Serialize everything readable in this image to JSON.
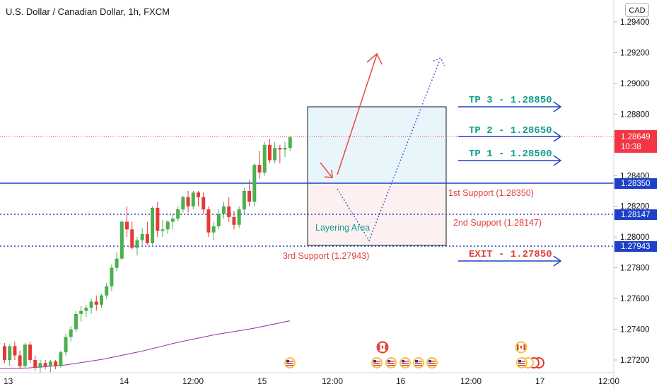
{
  "header": {
    "title": "U.S. Dollar / Canadian Dollar, 1h, FXCM",
    "currency_button": "CAD"
  },
  "price_axis": {
    "ticks": [
      "1.29400",
      "1.29200",
      "1.29000",
      "1.28800",
      "1.28600",
      "1.28400",
      "1.28200",
      "1.28000",
      "1.27800",
      "1.27600",
      "1.27400",
      "1.27200"
    ],
    "current_price": "1.28649",
    "countdown": "10:38",
    "level_tags": [
      "1.28350",
      "1.28147",
      "1.27943"
    ]
  },
  "time_axis": {
    "labels": [
      "13",
      "14",
      "12:00",
      "15",
      "12:00",
      "16",
      "12:00",
      "17",
      "12:00"
    ]
  },
  "annotations": {
    "tp3": "TP 3 - 1.28850",
    "tp2": "TP 2 - 1.28650",
    "tp1": "TP 1 - 1.28500",
    "exit": "EXIT - 1.27850",
    "support1": "1st Support (1.28350)",
    "support2": "2nd Support (1.28147)",
    "support3": "3rd Support (1.27943)",
    "layering": "Layering Area"
  },
  "colors": {
    "bull": "#4caf50",
    "bear": "#e53935",
    "blue_line": "#1e40c8",
    "teal_text": "#149e8e",
    "red_text": "#e0413e",
    "ma": "#9c27b0",
    "price_tag": "#f23645"
  },
  "chart_data": {
    "type": "candlestick",
    "ylim": [
      1.2711,
      1.2952
    ],
    "ohlc": [
      [
        1.2729,
        1.2731,
        1.2718,
        1.272
      ],
      [
        1.272,
        1.273,
        1.2716,
        1.2729
      ],
      [
        1.2729,
        1.2732,
        1.272,
        1.2723
      ],
      [
        1.2723,
        1.2726,
        1.2714,
        1.2716
      ],
      [
        1.2716,
        1.2731,
        1.2715,
        1.273
      ],
      [
        1.273,
        1.2732,
        1.2718,
        1.272
      ],
      [
        1.272,
        1.2723,
        1.2713,
        1.2715
      ],
      [
        1.2715,
        1.272,
        1.2712,
        1.2718
      ],
      [
        1.2718,
        1.272,
        1.2714,
        1.2716
      ],
      [
        1.2716,
        1.272,
        1.2712,
        1.2719
      ],
      [
        1.2719,
        1.272,
        1.2714,
        1.2716
      ],
      [
        1.2716,
        1.2726,
        1.2715,
        1.2725
      ],
      [
        1.2725,
        1.2737,
        1.2723,
        1.2735
      ],
      [
        1.2735,
        1.2742,
        1.2732,
        1.274
      ],
      [
        1.274,
        1.2752,
        1.2738,
        1.275
      ],
      [
        1.275,
        1.2755,
        1.2745,
        1.2752
      ],
      [
        1.2752,
        1.2756,
        1.2748,
        1.2754
      ],
      [
        1.2754,
        1.276,
        1.275,
        1.2758
      ],
      [
        1.2758,
        1.2762,
        1.2752,
        1.2756
      ],
      [
        1.2756,
        1.2763,
        1.2754,
        1.2762
      ],
      [
        1.2762,
        1.277,
        1.276,
        1.2768
      ],
      [
        1.2768,
        1.2782,
        1.2765,
        1.278
      ],
      [
        1.278,
        1.279,
        1.2778,
        1.2786
      ],
      [
        1.2786,
        1.2811,
        1.2785,
        1.281
      ],
      [
        1.281,
        1.282,
        1.28,
        1.2805
      ],
      [
        1.2805,
        1.281,
        1.2792,
        1.2793
      ],
      [
        1.2793,
        1.28,
        1.2788,
        1.2798
      ],
      [
        1.2798,
        1.2806,
        1.2795,
        1.2802
      ],
      [
        1.2802,
        1.281,
        1.2795,
        1.2796
      ],
      [
        1.2796,
        1.282,
        1.2795,
        1.2819
      ],
      [
        1.2819,
        1.2823,
        1.28,
        1.2804
      ],
      [
        1.2804,
        1.2811,
        1.28,
        1.2805
      ],
      [
        1.2805,
        1.2811,
        1.2802,
        1.281
      ],
      [
        1.281,
        1.2815,
        1.2805,
        1.2812
      ],
      [
        1.2812,
        1.282,
        1.281,
        1.2818
      ],
      [
        1.2818,
        1.2827,
        1.2816,
        1.2826
      ],
      [
        1.2826,
        1.283,
        1.2816,
        1.282
      ],
      [
        1.282,
        1.283,
        1.2818,
        1.2829
      ],
      [
        1.2829,
        1.283,
        1.282,
        1.2826
      ],
      [
        1.2826,
        1.2829,
        1.2815,
        1.2818
      ],
      [
        1.2818,
        1.282,
        1.28,
        1.2803
      ],
      [
        1.2803,
        1.281,
        1.2798,
        1.2807
      ],
      [
        1.2807,
        1.2818,
        1.2805,
        1.2815
      ],
      [
        1.2815,
        1.2823,
        1.2812,
        1.282
      ],
      [
        1.282,
        1.2826,
        1.281,
        1.2813
      ],
      [
        1.2813,
        1.2817,
        1.2805,
        1.2808
      ],
      [
        1.2808,
        1.282,
        1.2806,
        1.2818
      ],
      [
        1.2818,
        1.2832,
        1.2815,
        1.283
      ],
      [
        1.283,
        1.2837,
        1.282,
        1.2823
      ],
      [
        1.2823,
        1.2848,
        1.282,
        1.2847
      ],
      [
        1.2847,
        1.2856,
        1.2838,
        1.2842
      ],
      [
        1.2842,
        1.2862,
        1.284,
        1.286
      ],
      [
        1.286,
        1.2864,
        1.2848,
        1.285
      ],
      [
        1.285,
        1.2862,
        1.2848,
        1.2858
      ],
      [
        1.2858,
        1.286,
        1.2848,
        1.2857
      ],
      [
        1.2857,
        1.2862,
        1.2852,
        1.2858
      ],
      [
        1.2858,
        1.2866,
        1.2856,
        1.28649
      ]
    ],
    "moving_average": [
      1.27148,
      1.27168,
      1.27205,
      1.27255,
      1.27315,
      1.27365,
      1.27405,
      1.27455
    ],
    "horizontal_levels": [
      1.2835,
      1.28147,
      1.27943
    ],
    "current_price": 1.28649,
    "targets": [
      1.2885,
      1.2865,
      1.285
    ],
    "exit": 1.2785
  }
}
